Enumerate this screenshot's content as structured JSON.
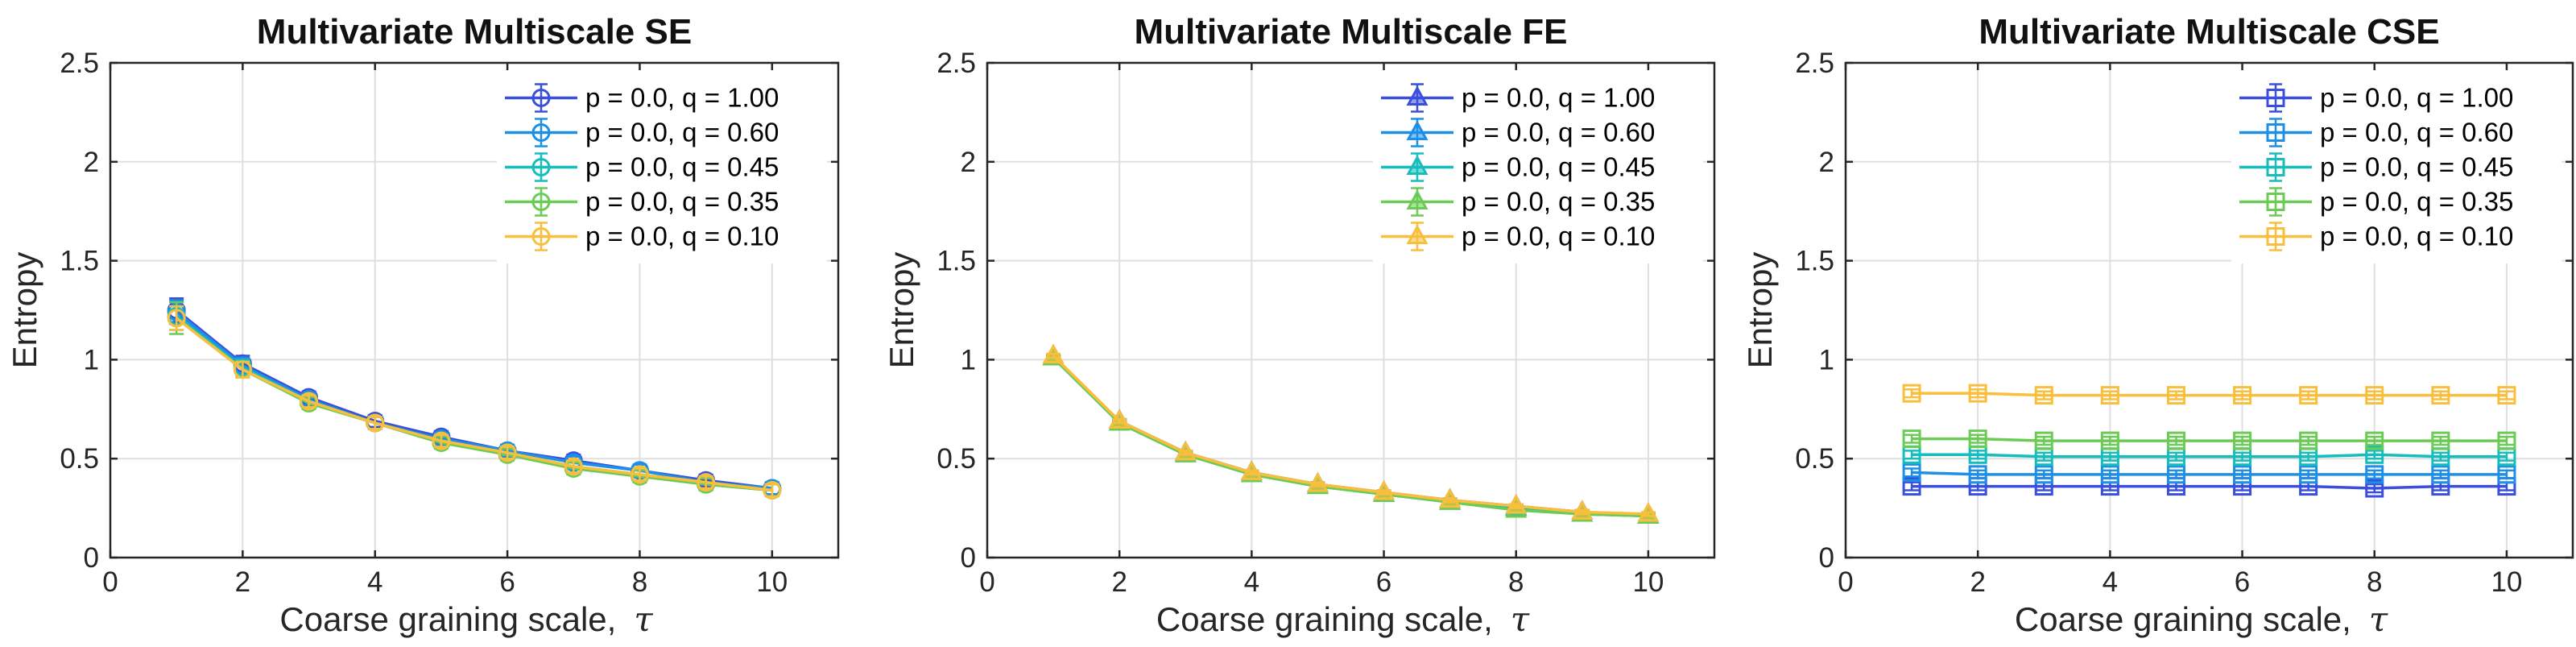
{
  "colors": {
    "q100": "#3a4fdc",
    "q060": "#1d8fe6",
    "q045": "#16bdbd",
    "q035": "#6ccb55",
    "q010": "#f9bf3c"
  },
  "chart_data": [
    {
      "type": "line",
      "title": "Multivariate Multiscale SE",
      "xlabel": "Coarse graining scale,",
      "xlabel_symbol": "τ",
      "ylabel": "Entropy",
      "xlim": [
        0,
        11
      ],
      "ylim": [
        0,
        2.5
      ],
      "xticks": [
        "0",
        "2",
        "4",
        "6",
        "8",
        "10"
      ],
      "yticks": [
        "0",
        "0.5",
        "1",
        "1.5",
        "2",
        "2.5"
      ],
      "marker": "circle",
      "legend_position": "top-right",
      "x": [
        1,
        2,
        3,
        4,
        5,
        6,
        7,
        8,
        9,
        10
      ],
      "series": [
        {
          "name": "p = 0.0, q = 1.00",
          "color_key": "q100",
          "values": [
            1.25,
            0.98,
            0.81,
            0.69,
            0.61,
            0.54,
            0.49,
            0.44,
            0.39,
            0.35
          ],
          "errors": [
            0.06,
            0.04,
            0.03,
            0.03,
            0.03,
            0.03,
            0.03,
            0.03,
            0.03,
            0.03
          ]
        },
        {
          "name": "p = 0.0, q = 0.60",
          "color_key": "q060",
          "values": [
            1.24,
            0.97,
            0.8,
            0.68,
            0.6,
            0.54,
            0.48,
            0.44,
            0.38,
            0.35
          ],
          "errors": [
            0.06,
            0.04,
            0.03,
            0.03,
            0.03,
            0.03,
            0.03,
            0.03,
            0.03,
            0.03
          ]
        },
        {
          "name": "p = 0.0, q = 0.45",
          "color_key": "q045",
          "values": [
            1.22,
            0.96,
            0.79,
            0.68,
            0.59,
            0.53,
            0.46,
            0.42,
            0.37,
            0.34
          ],
          "errors": [
            0.07,
            0.04,
            0.03,
            0.03,
            0.03,
            0.03,
            0.03,
            0.03,
            0.03,
            0.03
          ]
        },
        {
          "name": "p = 0.0, q = 0.35",
          "color_key": "q035",
          "values": [
            1.21,
            0.95,
            0.78,
            0.68,
            0.58,
            0.52,
            0.45,
            0.41,
            0.37,
            0.34
          ],
          "errors": [
            0.08,
            0.04,
            0.03,
            0.03,
            0.03,
            0.03,
            0.03,
            0.03,
            0.03,
            0.03
          ]
        },
        {
          "name": "p = 0.0, q = 0.10",
          "color_key": "q010",
          "values": [
            1.21,
            0.95,
            0.79,
            0.68,
            0.59,
            0.53,
            0.46,
            0.42,
            0.38,
            0.34
          ],
          "errors": [
            0.06,
            0.04,
            0.03,
            0.03,
            0.03,
            0.03,
            0.03,
            0.03,
            0.03,
            0.03
          ]
        }
      ]
    },
    {
      "type": "line",
      "title": "Multivariate Multiscale FE",
      "xlabel": "Coarse graining scale,",
      "xlabel_symbol": "τ",
      "ylabel": "Entropy",
      "xlim": [
        0,
        11
      ],
      "ylim": [
        0,
        2.5
      ],
      "xticks": [
        "0",
        "2",
        "4",
        "6",
        "8",
        "10"
      ],
      "yticks": [
        "0",
        "0.5",
        "1",
        "1.5",
        "2",
        "2.5"
      ],
      "marker": "triangle",
      "legend_position": "top-right",
      "x": [
        1,
        2,
        3,
        4,
        5,
        6,
        7,
        8,
        9,
        10
      ],
      "series": [
        {
          "name": "p = 0.0, q = 1.00",
          "color_key": "q100",
          "values": [
            1.01,
            0.69,
            0.53,
            0.43,
            0.37,
            0.33,
            0.29,
            0.26,
            0.23,
            0.21
          ],
          "errors": [
            0.01,
            0.01,
            0.01,
            0.01,
            0.01,
            0.01,
            0.01,
            0.01,
            0.01,
            0.01
          ]
        },
        {
          "name": "p = 0.0, q = 0.60",
          "color_key": "q060",
          "values": [
            1.01,
            0.69,
            0.53,
            0.43,
            0.37,
            0.32,
            0.29,
            0.25,
            0.23,
            0.21
          ],
          "errors": [
            0.01,
            0.01,
            0.01,
            0.01,
            0.01,
            0.01,
            0.01,
            0.01,
            0.01,
            0.01
          ]
        },
        {
          "name": "p = 0.0, q = 0.45",
          "color_key": "q045",
          "values": [
            1.01,
            0.68,
            0.52,
            0.42,
            0.36,
            0.32,
            0.28,
            0.25,
            0.22,
            0.21
          ],
          "errors": [
            0.01,
            0.01,
            0.01,
            0.01,
            0.01,
            0.01,
            0.01,
            0.01,
            0.01,
            0.01
          ]
        },
        {
          "name": "p = 0.0, q = 0.35",
          "color_key": "q035",
          "values": [
            1.01,
            0.68,
            0.52,
            0.42,
            0.36,
            0.32,
            0.28,
            0.24,
            0.22,
            0.21
          ],
          "errors": [
            0.01,
            0.01,
            0.01,
            0.01,
            0.01,
            0.01,
            0.01,
            0.01,
            0.01,
            0.01
          ]
        },
        {
          "name": "p = 0.0, q = 0.10",
          "color_key": "q010",
          "values": [
            1.02,
            0.69,
            0.53,
            0.43,
            0.37,
            0.33,
            0.29,
            0.26,
            0.23,
            0.22
          ],
          "errors": [
            0.01,
            0.01,
            0.01,
            0.01,
            0.01,
            0.01,
            0.01,
            0.01,
            0.01,
            0.01
          ]
        }
      ]
    },
    {
      "type": "line",
      "title": "Multivariate Multiscale CSE",
      "xlabel": "Coarse graining scale,",
      "xlabel_symbol": "τ",
      "ylabel": "Entropy",
      "xlim": [
        0,
        11
      ],
      "ylim": [
        0,
        2.5
      ],
      "xticks": [
        "0",
        "2",
        "4",
        "6",
        "8",
        "10"
      ],
      "yticks": [
        "0",
        "0.5",
        "1",
        "1.5",
        "2",
        "2.5"
      ],
      "marker": "square",
      "legend_position": "top-right",
      "x": [
        1,
        2,
        3,
        4,
        5,
        6,
        7,
        8,
        9,
        10
      ],
      "series": [
        {
          "name": "p = 0.0, q = 1.00",
          "color_key": "q100",
          "values": [
            0.36,
            0.36,
            0.36,
            0.36,
            0.36,
            0.36,
            0.36,
            0.35,
            0.36,
            0.36
          ],
          "errors": [
            0.02,
            0.02,
            0.02,
            0.02,
            0.02,
            0.02,
            0.02,
            0.02,
            0.02,
            0.02
          ]
        },
        {
          "name": "p = 0.0, q = 0.60",
          "color_key": "q060",
          "values": [
            0.43,
            0.42,
            0.42,
            0.42,
            0.42,
            0.42,
            0.42,
            0.42,
            0.42,
            0.42
          ],
          "errors": [
            0.02,
            0.02,
            0.02,
            0.02,
            0.02,
            0.02,
            0.02,
            0.02,
            0.02,
            0.02
          ]
        },
        {
          "name": "p = 0.0, q = 0.45",
          "color_key": "q045",
          "values": [
            0.52,
            0.52,
            0.51,
            0.51,
            0.51,
            0.51,
            0.51,
            0.52,
            0.51,
            0.51
          ],
          "errors": [
            0.02,
            0.02,
            0.02,
            0.02,
            0.02,
            0.02,
            0.02,
            0.02,
            0.02,
            0.02
          ]
        },
        {
          "name": "p = 0.0, q = 0.35",
          "color_key": "q035",
          "values": [
            0.6,
            0.6,
            0.59,
            0.59,
            0.59,
            0.59,
            0.59,
            0.59,
            0.59,
            0.59
          ],
          "errors": [
            0.02,
            0.02,
            0.02,
            0.02,
            0.02,
            0.02,
            0.02,
            0.02,
            0.02,
            0.02
          ]
        },
        {
          "name": "p = 0.0, q = 0.10",
          "color_key": "q010",
          "values": [
            0.83,
            0.83,
            0.82,
            0.82,
            0.82,
            0.82,
            0.82,
            0.82,
            0.82,
            0.82
          ],
          "errors": [
            0.02,
            0.02,
            0.02,
            0.02,
            0.02,
            0.02,
            0.02,
            0.02,
            0.02,
            0.02
          ]
        }
      ]
    }
  ]
}
